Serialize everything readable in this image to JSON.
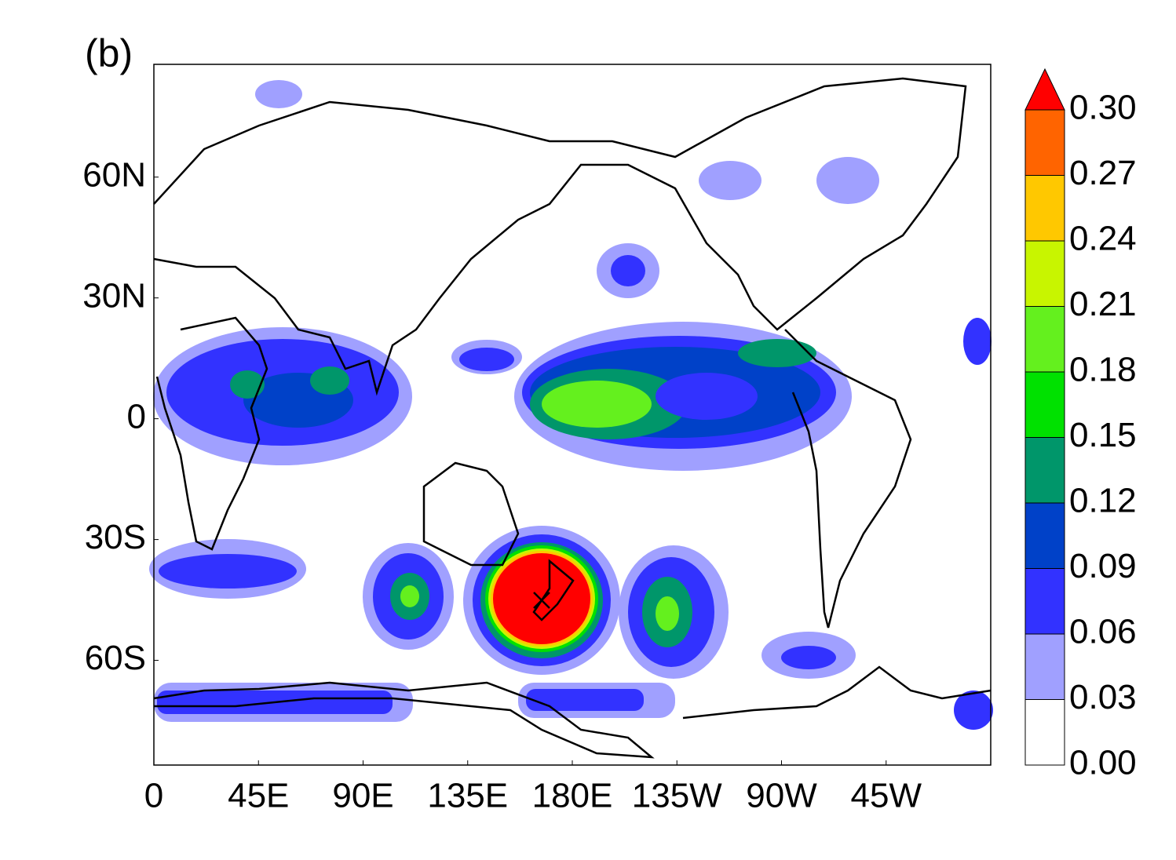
{
  "panel_label": "(b)",
  "map": {
    "xlim": [
      0,
      360
    ],
    "ylim": [
      -86,
      88
    ],
    "xticks": [
      0,
      {
        "value": 45,
        "label": "45E"
      },
      {
        "value": 90,
        "label": "90E"
      },
      {
        "value": 135,
        "label": "135E"
      },
      {
        "value": 180,
        "label": "180E"
      },
      {
        "value": 225,
        "label": "135W"
      },
      {
        "value": 270,
        "label": "90W"
      },
      {
        "value": 315,
        "label": "45W"
      }
    ],
    "yticks": [
      {
        "value": 60,
        "label": "60N"
      },
      {
        "value": 30,
        "label": "30N"
      },
      0,
      {
        "value": -30,
        "label": "30S"
      },
      {
        "value": -60,
        "label": "60S"
      }
    ]
  },
  "colorbar": {
    "levels": [
      {
        "value": 0,
        "label": "0.00"
      },
      0.03,
      0.06,
      0.09,
      0.12,
      0.15,
      0.18,
      0.21,
      0.24,
      0.27,
      {
        "value": 0.3,
        "label": "0.30"
      }
    ],
    "colors": [
      "#ffffff",
      "#a0a0ff",
      "#3232ff",
      "#0041c8",
      "#00966a",
      "#00e100",
      "#64f01e",
      "#c8f500",
      "#ffc800",
      "#ff6400"
    ],
    "extend_color": "#ff0000"
  }
}
